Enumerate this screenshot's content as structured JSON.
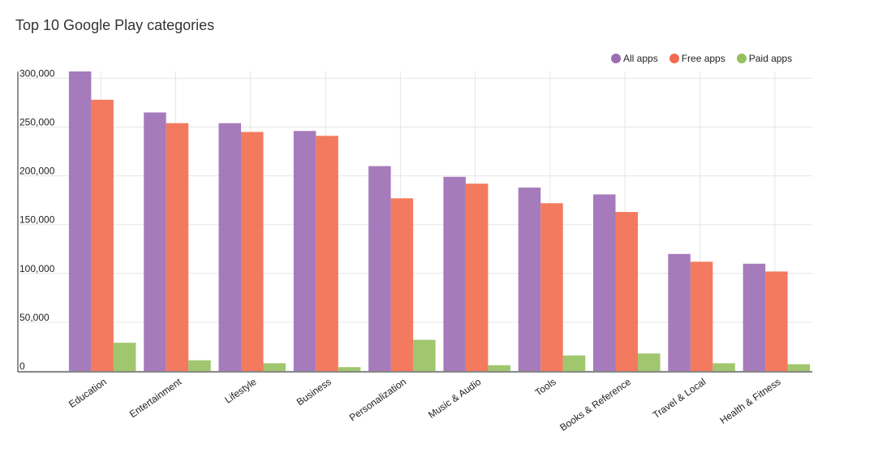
{
  "chart_data": {
    "type": "bar",
    "title": "Top 10 Google Play categories",
    "categories": [
      "Education",
      "Entertainment",
      "Lifestyle",
      "Business",
      "Personalization",
      "Music & Audio",
      "Tools",
      "Books & Reference",
      "Travel & Local",
      "Health & Fitness"
    ],
    "series": [
      {
        "name": "All apps",
        "color": "#9c6db5",
        "values": [
          307000,
          265000,
          254000,
          246000,
          210000,
          199000,
          188000,
          181000,
          120000,
          110000
        ]
      },
      {
        "name": "Free apps",
        "color": "#f26b4d",
        "values": [
          278000,
          254000,
          245000,
          241000,
          177000,
          192000,
          172000,
          163000,
          112000,
          102000
        ]
      },
      {
        "name": "Paid apps",
        "color": "#96c05e",
        "values": [
          29000,
          11000,
          8000,
          4000,
          32000,
          6000,
          16000,
          18000,
          8000,
          7000
        ]
      }
    ],
    "yticks": [
      "0",
      "50,000",
      "100,000",
      "150,000",
      "200,000",
      "250,000",
      "300,000"
    ],
    "ylim": [
      0,
      307000
    ],
    "grid": true,
    "legend_position": "top-right"
  }
}
